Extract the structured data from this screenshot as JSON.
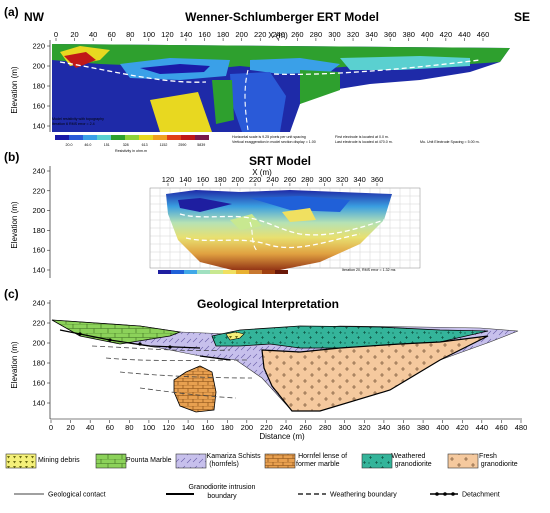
{
  "panels": {
    "a": {
      "letter": "(a)",
      "title": "Wenner-Schlumberger ERT Model",
      "left_label": "NW",
      "right_label": "SE",
      "ylabel": "Elevation (m)",
      "xlabel": "X (m)",
      "y_ticks": [
        "220",
        "200",
        "180",
        "160",
        "140"
      ],
      "x_ticks": [
        "0",
        "20",
        "40",
        "60",
        "80",
        "100",
        "120",
        "140",
        "160",
        "180",
        "200",
        "220",
        "240",
        "260",
        "280",
        "300",
        "320",
        "340",
        "360",
        "380",
        "400",
        "420",
        "440",
        "460"
      ],
      "notes": [
        "Model resistivity with topography",
        "Iteration 6 RMS error = 2.4",
        "Horizontal scale is 9.25 pixels per unit spacing",
        "Vertical exaggeration in model section display = 1.00",
        "First electrode is located at 0.0  m.",
        "Last electrode is located at 470.0 m.",
        "Mu. Unit Electrode Spacing = 5.00 m.",
        "Resistivity in ohm.m"
      ],
      "colorbar_values": [
        "20.0",
        "46.0",
        "151",
        "328",
        "613",
        "1152",
        "2590",
        "5839"
      ],
      "colorbar_colors": [
        "#1a1aa8",
        "#2a5ad8",
        "#3aa0e8",
        "#5ad0d0",
        "#2ea02e",
        "#8ed23a",
        "#e8d820",
        "#f0a020",
        "#e04018",
        "#c01818",
        "#7a1a4a"
      ]
    },
    "b": {
      "letter": "(b)",
      "title": "SRT Model",
      "ylabel": "Elevation (m)",
      "xlabel": "X (m)",
      "y_ticks": [
        "240",
        "220",
        "200",
        "180",
        "160",
        "140"
      ],
      "x_ticks": [
        "120",
        "140",
        "160",
        "180",
        "200",
        "220",
        "240",
        "260",
        "280",
        "300",
        "320",
        "340",
        "360"
      ],
      "note": "Iteration 20, RMS error = 1.32 ms",
      "colorbar_colors": [
        "#1e1ea0",
        "#2060d8",
        "#40a8e8",
        "#a0e0c0",
        "#c8e890",
        "#f0e060",
        "#e8b030",
        "#c87830",
        "#a04010",
        "#6a1808"
      ]
    },
    "c": {
      "letter": "(c)",
      "title": "Geological Interpretation",
      "ylabel": "Elevation (m)",
      "xlabel": "Distance (m)",
      "y_ticks": [
        "240",
        "220",
        "200",
        "180",
        "160",
        "140"
      ],
      "x_ticks": [
        "0",
        "20",
        "40",
        "60",
        "80",
        "100",
        "120",
        "140",
        "160",
        "180",
        "200",
        "220",
        "240",
        "260",
        "280",
        "300",
        "320",
        "340",
        "360",
        "380",
        "400",
        "420",
        "440",
        "460",
        "480"
      ]
    }
  },
  "legend": {
    "units": [
      {
        "label": "Mining debris",
        "color": "#f4f07a"
      },
      {
        "label": "Pounta Marble",
        "color": "#8cd25a"
      },
      {
        "label": "Kamariza Schists (hornfels)",
        "color": "#c7c0ec"
      },
      {
        "label": "Hornfel lense of former marble",
        "color": "#e8a050"
      },
      {
        "label": "Weathered granodiorite",
        "color": "#34b49a"
      },
      {
        "label": "Fresh granodiorite",
        "color": "#f5c99e"
      }
    ],
    "lines": [
      {
        "label": "Geological contact"
      },
      {
        "label": "Granodiorite intrusion boundary"
      },
      {
        "label": "Weathering boundary"
      },
      {
        "label": "Detachment"
      }
    ]
  }
}
